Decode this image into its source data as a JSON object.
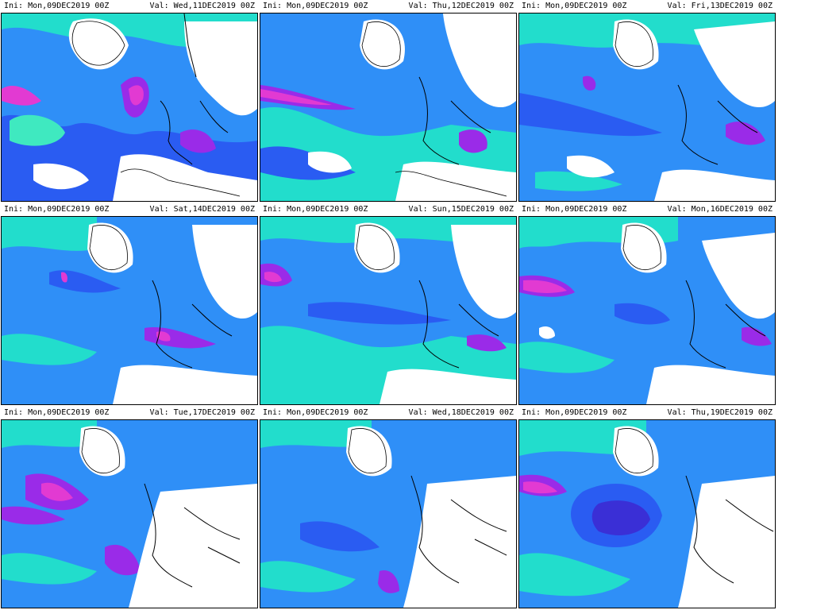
{
  "panels": [
    {
      "ini": "Ini: Mon,09DEC2019 00Z",
      "val": "Val: Wed,11DEC2019 00Z"
    },
    {
      "ini": "Ini: Mon,09DEC2019 00Z",
      "val": "Val: Thu,12DEC2019 00Z"
    },
    {
      "ini": "Ini: Mon,09DEC2019 00Z",
      "val": "Val: Fri,13DEC2019 00Z"
    },
    {
      "ini": "Ini: Mon,09DEC2019 00Z",
      "val": "Val: Sat,14DEC2019 00Z"
    },
    {
      "ini": "Ini: Mon,09DEC2019 00Z",
      "val": "Val: Sun,15DEC2019 00Z"
    },
    {
      "ini": "Ini: Mon,09DEC2019 00Z",
      "val": "Val: Mon,16DEC2019 00Z"
    },
    {
      "ini": "Ini: Mon,09DEC2019 00Z",
      "val": "Val: Tue,17DEC2019 00Z"
    },
    {
      "ini": "Ini: Mon,09DEC2019 00Z",
      "val": "Val: Wed,18DEC2019 00Z"
    },
    {
      "ini": "Ini: Mon,09DEC2019 00Z",
      "val": "Val: Thu,19DEC2019 00Z"
    }
  ],
  "colors": {
    "light": "#22ddcc",
    "mid": "#2f8ff7",
    "blue": "#2a5cf2",
    "deep": "#3a2fd6",
    "violet": "#9a2be8",
    "magenta": "#e23ad2",
    "coast": "#000000",
    "cyanfill": "#3fe9c0"
  }
}
